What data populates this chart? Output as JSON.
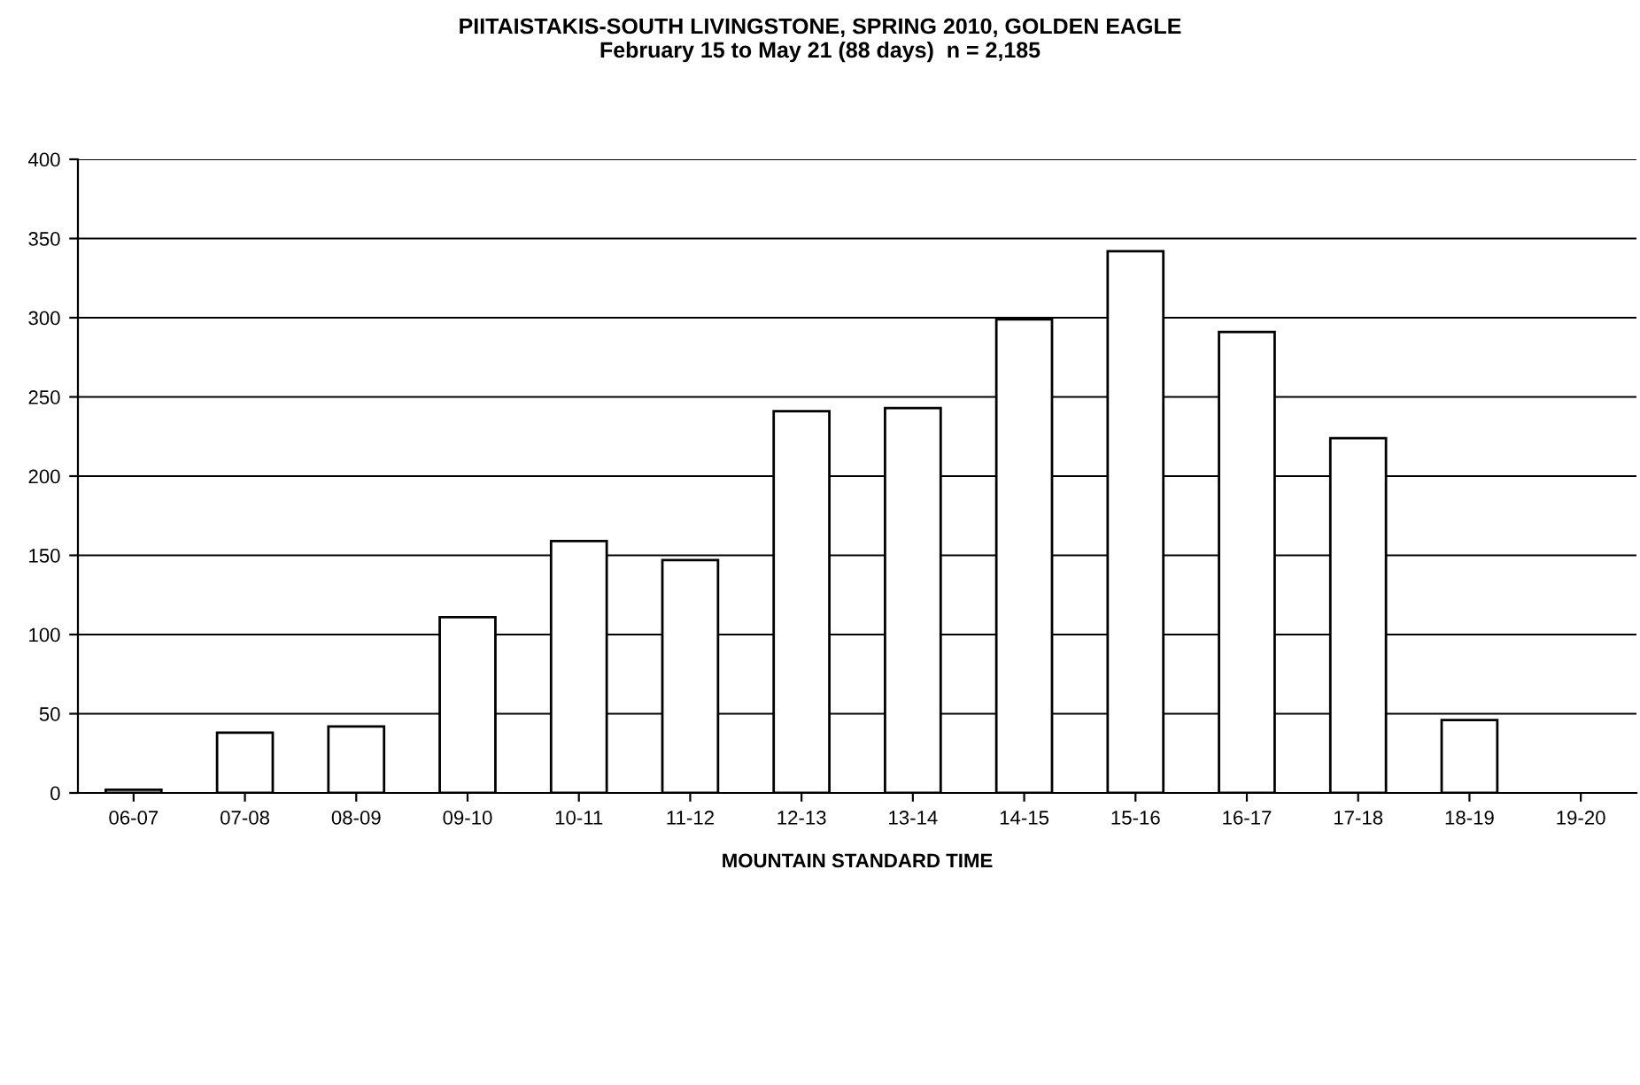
{
  "chart_data": {
    "type": "bar",
    "title": "PIITAISTAKIS-SOUTH LIVINGSTONE, SPRING 2010, GOLDEN EAGLE\nFebruary 15 to May 21 (88 days)  n = 2,185",
    "xlabel": "MOUNTAIN STANDARD TIME",
    "categories": [
      "06-07",
      "07-08",
      "08-09",
      "09-10",
      "10-11",
      "11-12",
      "12-13",
      "13-14",
      "14-15",
      "15-16",
      "16-17",
      "17-18",
      "18-19",
      "19-20"
    ],
    "values": [
      2,
      38,
      42,
      111,
      159,
      147,
      241,
      243,
      299,
      342,
      291,
      224,
      46,
      null
    ],
    "color": "#ffffff",
    "ylim": [
      0,
      400
    ],
    "yticks": [
      0,
      50,
      100,
      150,
      200,
      250,
      300,
      350,
      400
    ],
    "grid": "y"
  }
}
